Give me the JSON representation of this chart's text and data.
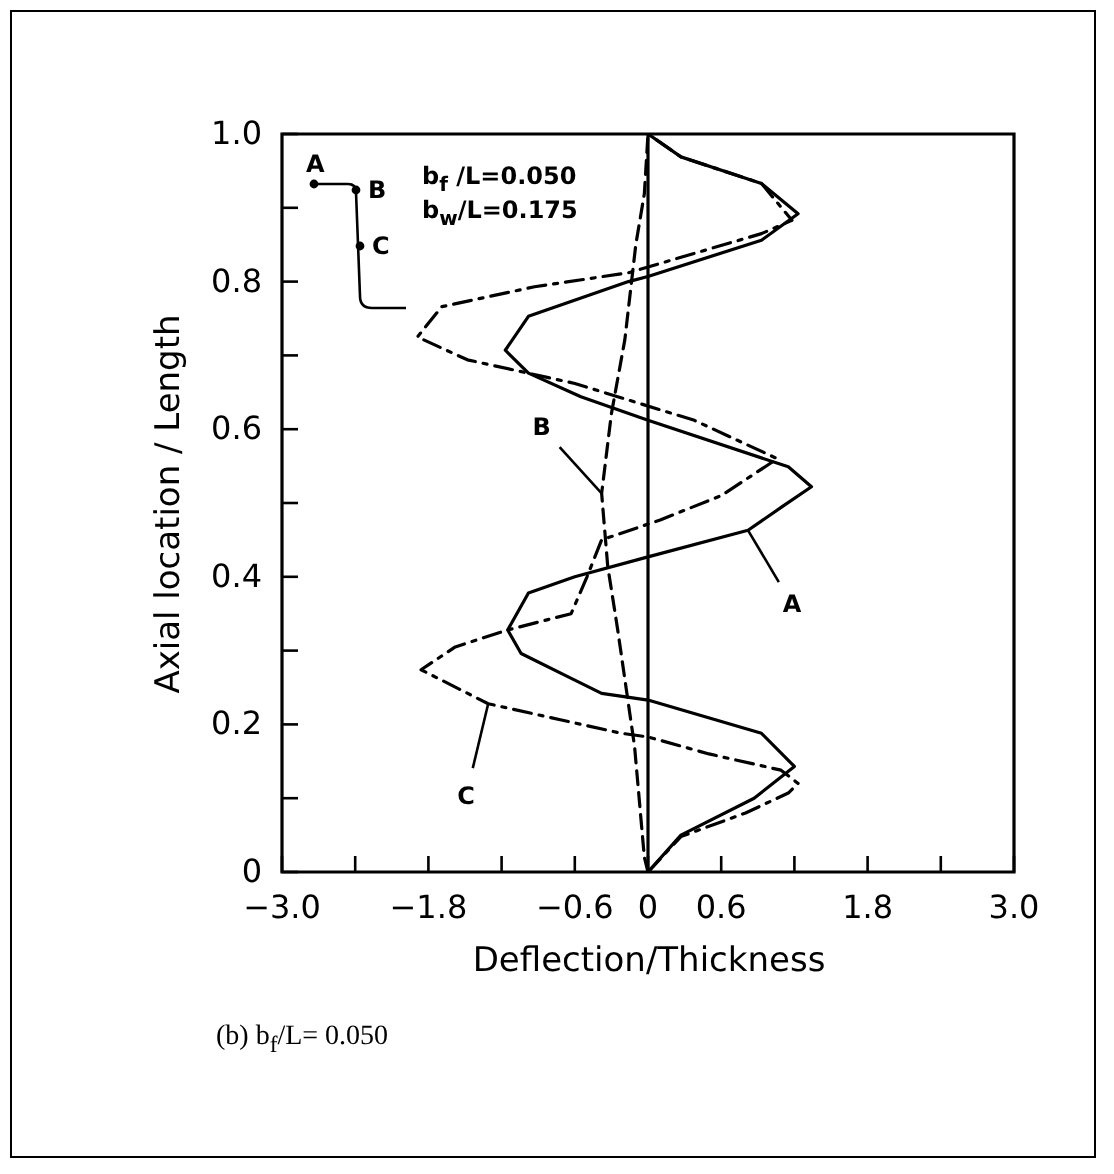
{
  "chart_data": {
    "type": "line",
    "xlabel": "Deflection/Thickness",
    "ylabel": "Axial location / Length",
    "xlim": [
      -3,
      3
    ],
    "ylim": [
      0,
      1
    ],
    "xticks": [
      {
        "value": -3,
        "label": "−3.0"
      },
      {
        "value": -2.4,
        "label": null
      },
      {
        "value": -1.8,
        "label": "−1.8"
      },
      {
        "value": -1.2,
        "label": null
      },
      {
        "value": -0.6,
        "label": "−0.6"
      },
      0,
      0.6,
      {
        "value": 1.2,
        "label": null
      },
      1.8,
      {
        "value": 2.4,
        "label": null
      },
      {
        "value": 3,
        "label": "3.0"
      }
    ],
    "yticks": [
      {
        "value": 0,
        "label": "0"
      },
      {
        "value": 0.1,
        "label": null
      },
      0.2,
      {
        "value": 0.3,
        "label": null
      },
      0.4,
      {
        "value": 0.5,
        "label": null
      },
      0.6,
      {
        "value": 0.7,
        "label": null
      },
      0.8,
      {
        "value": 0.9,
        "label": null
      },
      {
        "value": 1,
        "label": "1.0"
      }
    ],
    "grid": false,
    "marker": "none",
    "series": [
      {
        "color": "#000000",
        "line_style": "solid",
        "x": [
          0,
          0.27,
          0.87,
          1.2,
          0.93,
          0,
          -0.38,
          -0.6,
          -1.04,
          -1.15,
          -0.98,
          -0.6,
          0,
          0.82,
          1.1,
          1.34,
          1.15,
          0,
          -0.55,
          -0.98,
          -1.17,
          -0.98,
          -0.16,
          0,
          0.93,
          1.23,
          0.93,
          0.27,
          0
        ],
        "values": [
          0,
          0.05,
          0.1,
          0.143,
          0.188,
          0.233,
          0.242,
          0.26,
          0.296,
          0.328,
          0.378,
          0.4,
          0.427,
          0.463,
          0.495,
          0.522,
          0.549,
          0.612,
          0.644,
          0.676,
          0.707,
          0.753,
          0.8,
          0.807,
          0.856,
          0.892,
          0.933,
          0.969,
          1
        ]
      },
      {
        "color": "#000000",
        "line_style": "dashed",
        "x": [
          0,
          -0.03,
          -0.11,
          -0.25,
          -0.33,
          -0.38,
          -0.3,
          -0.19,
          -0.1,
          -0.03,
          0
        ],
        "values": [
          0,
          0.02,
          0.17,
          0.33,
          0.414,
          0.513,
          0.621,
          0.721,
          0.85,
          0.919,
          1
        ]
      },
      {
        "color": "#000000",
        "line_style": "dashdot",
        "x": [
          0,
          0.27,
          0.8,
          1.15,
          1.23,
          1.09,
          0.5,
          0,
          -0.22,
          -0.71,
          -1.31,
          -1.86,
          -1.58,
          -1.15,
          -0.63,
          -0.5,
          -0.38,
          0.1,
          0.6,
          1.06,
          0.38,
          -0.6,
          -1.48,
          -1.89,
          -1.69,
          -0.93,
          -0.16,
          0.93,
          1.18,
          0.93,
          0.27,
          0
        ],
        "values": [
          0,
          0.048,
          0.08,
          0.107,
          0.12,
          0.138,
          0.16,
          0.183,
          0.188,
          0.206,
          0.228,
          0.274,
          0.305,
          0.328,
          0.35,
          0.4,
          0.45,
          0.477,
          0.51,
          0.56,
          0.612,
          0.662,
          0.694,
          0.725,
          0.766,
          0.793,
          0.812,
          0.865,
          0.883,
          0.933,
          0.969,
          1
        ]
      }
    ],
    "ref_lines": [
      {
        "axis": "x",
        "value": 0,
        "color": "#000000"
      }
    ],
    "annotations": [
      {
        "text": "A",
        "x": 0.82,
        "y": 0.463
      },
      {
        "text": "B",
        "x": -0.38,
        "y": 0.513
      },
      {
        "text": "C",
        "x": -1.31,
        "y": 0.228
      },
      "A",
      "B",
      "C",
      "b$_{f}$ /L=0.050",
      "b$_{w}$/L=0.175",
      "(b) b$_{f}$/L= 0.050"
    ]
  }
}
